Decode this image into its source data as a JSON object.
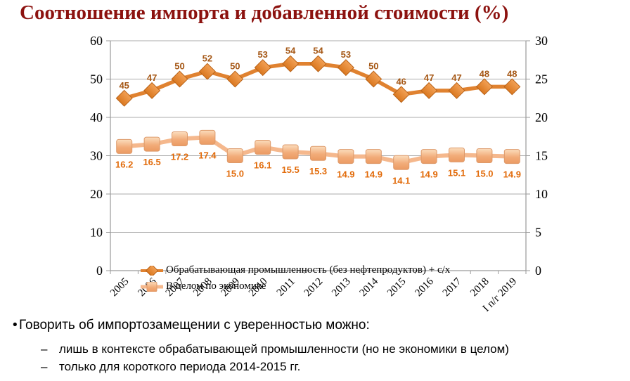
{
  "title": "Соотношение импорта и добавленной стоимости (%)",
  "chart_data": {
    "type": "line",
    "title": "Соотношение импорта и добавленной стоимости (%)",
    "categories": [
      "2005",
      "2006",
      "2007",
      "2008",
      "2009",
      "2010",
      "2011",
      "2012",
      "2013",
      "2014",
      "2015",
      "2016",
      "2017",
      "2018",
      "I п/г 2019"
    ],
    "series": [
      {
        "name": "Обрабатывающая промышленность (без нефтепродуктов) + с/х",
        "axis": "left",
        "marker": "diamond",
        "values": [
          45,
          47,
          50,
          52,
          50,
          53,
          54,
          54,
          53,
          50,
          46,
          47,
          47,
          48,
          48
        ],
        "labels": [
          "45",
          "47",
          "50",
          "52",
          "50",
          "53",
          "54",
          "54",
          "53",
          "50",
          "46",
          "47",
          "47",
          "48",
          "48"
        ],
        "line_color": "#E08230",
        "marker_stroke": "#B96318",
        "label_color": "#A55715"
      },
      {
        "name": "В целом по экономике",
        "axis": "right",
        "marker": "square",
        "values": [
          16.2,
          16.5,
          17.2,
          17.4,
          15.0,
          16.1,
          15.5,
          15.3,
          14.9,
          14.9,
          14.1,
          14.9,
          15.1,
          15.0,
          14.9
        ],
        "labels": [
          "16.2",
          "16.5",
          "17.2",
          "17.4",
          "15.0",
          "16.1",
          "15.5",
          "15.3",
          "14.9",
          "14.9",
          "14.1",
          "14.9",
          "15.1",
          "15.0",
          "14.9"
        ],
        "line_color": "#F5B88D",
        "marker_stroke": "#DD9A6B",
        "label_color": "#E26B0A"
      }
    ],
    "left_axis": {
      "min": 0,
      "max": 60,
      "step": 10,
      "ticks": [
        "0",
        "10",
        "20",
        "30",
        "40",
        "50",
        "60"
      ]
    },
    "right_axis": {
      "min": 0,
      "max": 30,
      "step": 5,
      "ticks": [
        "0",
        "5",
        "10",
        "15",
        "20",
        "25",
        "30"
      ]
    },
    "grid": true,
    "legend_position": "bottom-inside"
  },
  "bullets": {
    "main_marker": "•",
    "main": "Говорить об импортозамещении с уверенностью можно:",
    "sub_marker": "–",
    "sub": [
      "лишь в контексте обрабатывающей промышленности (но не экономики в целом)",
      "только для короткого периода 2014-2015 гг."
    ]
  },
  "colors": {
    "title": "#8C120F",
    "gridline": "#ABABAB",
    "axis_line": "#9A9A9A",
    "axis_text": "#000000"
  }
}
